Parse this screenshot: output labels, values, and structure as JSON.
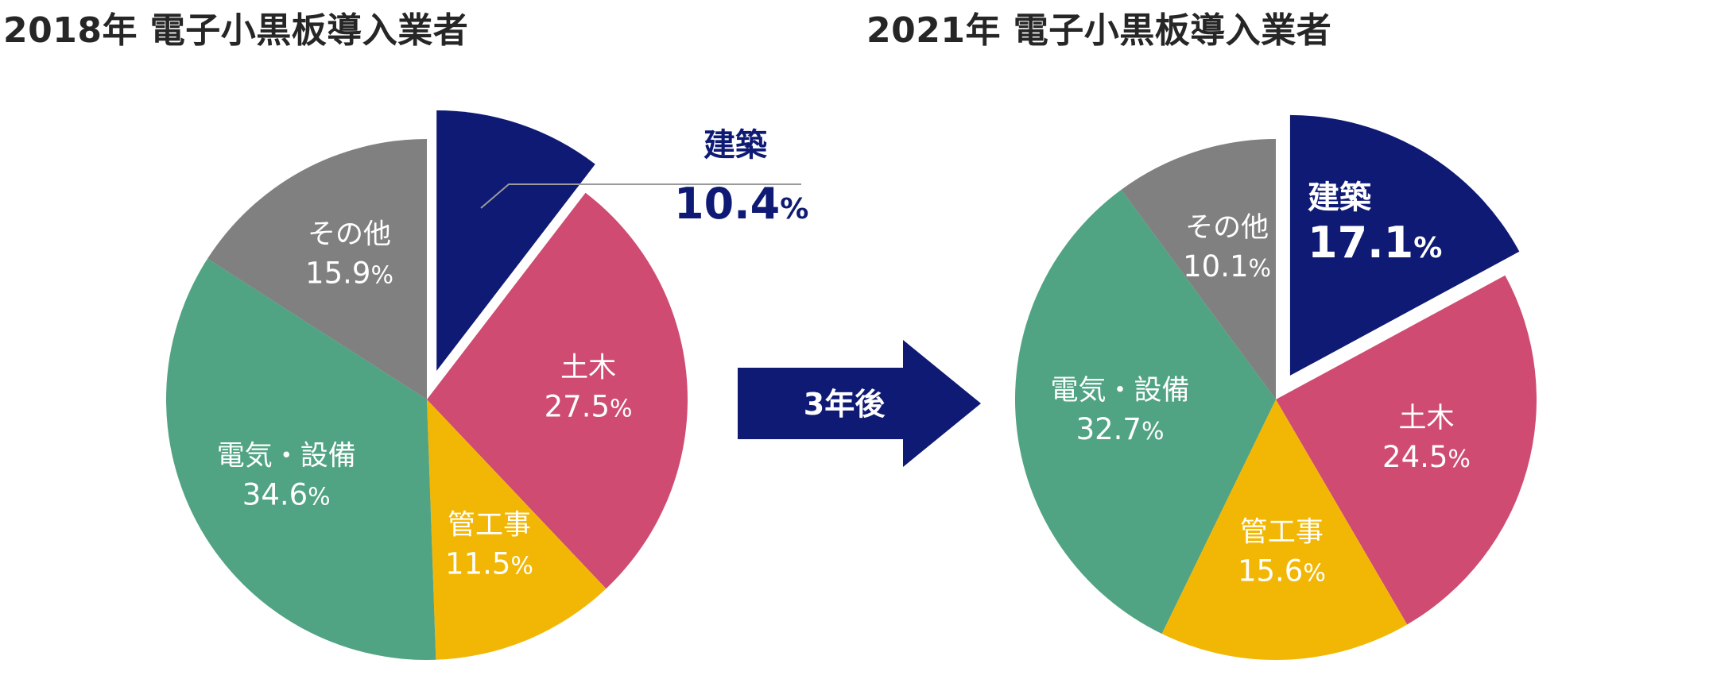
{
  "colors": {
    "建築": "#0e1a74",
    "土木": "#cf4b72",
    "管工事": "#f2b705",
    "電気・設備": "#50a383",
    "その他": "#808080",
    "leader_line": "#9a9a9a",
    "arrow": "#0e1a74"
  },
  "arrow": {
    "label": "3年後"
  },
  "chart_data": [
    {
      "type": "pie",
      "title": "2018年 電子小黒板導入業者",
      "unit": "%",
      "start_angle_deg": 0,
      "direction": "clockwise",
      "exploded_slice": "建築",
      "categories": [
        "建築",
        "土木",
        "管工事",
        "電気・設備",
        "その他"
      ],
      "values": [
        10.4,
        27.5,
        11.5,
        34.6,
        15.9
      ],
      "labels": [
        {
          "name": "建築",
          "value": "10.4",
          "unit": "%"
        },
        {
          "name": "土木",
          "value": "27.5",
          "unit": "%"
        },
        {
          "name": "管工事",
          "value": "11.5",
          "unit": "%"
        },
        {
          "name": "電気・設備",
          "value": "34.6",
          "unit": "%"
        },
        {
          "name": "その他",
          "value": "15.9",
          "unit": "%"
        }
      ],
      "callout_slice": "建築"
    },
    {
      "type": "pie",
      "title": "2021年 電子小黒板導入業者",
      "unit": "%",
      "start_angle_deg": 0,
      "direction": "clockwise",
      "exploded_slice": "建築",
      "categories": [
        "建築",
        "土木",
        "管工事",
        "電気・設備",
        "その他"
      ],
      "values": [
        17.1,
        24.5,
        15.6,
        32.7,
        10.1
      ],
      "labels": [
        {
          "name": "建築",
          "value": "17.1",
          "unit": "%"
        },
        {
          "name": "土木",
          "value": "24.5",
          "unit": "%"
        },
        {
          "name": "管工事",
          "value": "15.6",
          "unit": "%"
        },
        {
          "name": "電気・設備",
          "value": "32.7",
          "unit": "%"
        },
        {
          "name": "その他",
          "value": "10.1",
          "unit": "%"
        }
      ],
      "callout_slice": ""
    }
  ]
}
